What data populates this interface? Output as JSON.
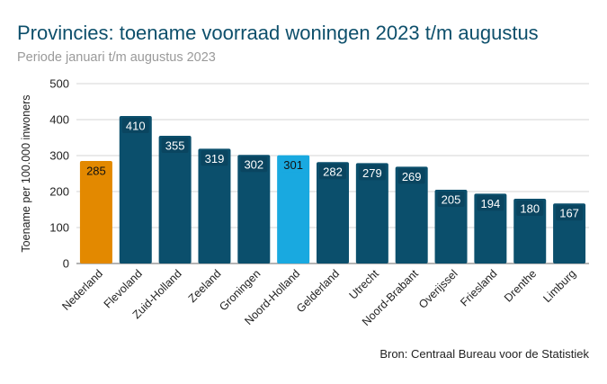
{
  "chart_data": {
    "type": "bar",
    "title": "Provincies: toename voorraad woningen 2023 t/m augustus",
    "subtitle": "Periode januari t/m augustus 2023",
    "xlabel": "",
    "ylabel": "Toename per 100.000 inwoners",
    "ylim": [
      0,
      500
    ],
    "yticks": [
      0,
      100,
      200,
      300,
      400,
      500
    ],
    "grid": true,
    "categories": [
      "Nederland",
      "Flevoland",
      "Zuid-Holland",
      "Zeeland",
      "Groningen",
      "Noord-Holland",
      "Gelderland",
      "Utrecht",
      "Noord-Brabant",
      "Overijssel",
      "Friesland",
      "Drenthe",
      "Limburg"
    ],
    "values": [
      285,
      410,
      355,
      319,
      302,
      301,
      282,
      279,
      269,
      205,
      194,
      180,
      167
    ],
    "colors": [
      "#e38900",
      "#0b4f6c",
      "#0b4f6c",
      "#0b4f6c",
      "#0b4f6c",
      "#19a9e0",
      "#0b4f6c",
      "#0b4f6c",
      "#0b4f6c",
      "#0b4f6c",
      "#0b4f6c",
      "#0b4f6c",
      "#0b4f6c"
    ],
    "source": "Bron: Centraal Bureau voor de Statistiek"
  }
}
